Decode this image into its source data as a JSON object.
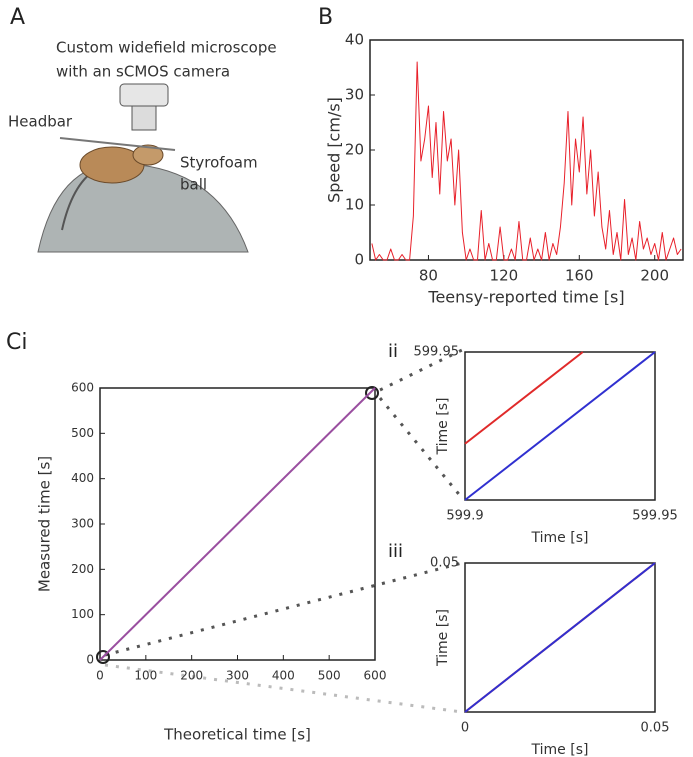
{
  "panel_labels": {
    "a": "A",
    "b": "B",
    "ci": "Ci",
    "ii": "ii",
    "iii": "iii"
  },
  "illustration": {
    "labels": [
      "Custom widefield microscope",
      "with an sCMOS camera",
      "Headbar",
      "Styrofoam",
      "ball"
    ]
  },
  "chart_data": [
    {
      "type": "line",
      "xlabel": "Teensy-reported time [s]",
      "ylabel": "Speed [cm/s]",
      "xlim": [
        49,
        215
      ],
      "ylim": [
        0,
        40
      ],
      "xticks": [
        80,
        120,
        160,
        200
      ],
      "yticks": [
        0,
        10,
        20,
        30,
        40
      ],
      "series": [
        {
          "color": "#e8202a",
          "x": [
            50,
            52,
            54,
            56,
            58,
            60,
            62,
            64,
            66,
            68,
            70,
            72,
            74,
            76,
            78,
            80,
            82,
            84,
            86,
            88,
            90,
            92,
            94,
            96,
            98,
            100,
            102,
            104,
            106,
            108,
            110,
            112,
            114,
            116,
            118,
            120,
            122,
            124,
            126,
            128,
            130,
            132,
            134,
            136,
            138,
            140,
            142,
            144,
            146,
            148,
            150,
            152,
            154,
            156,
            158,
            160,
            162,
            164,
            166,
            168,
            170,
            172,
            174,
            176,
            178,
            180,
            182,
            184,
            186,
            188,
            190,
            192,
            194,
            196,
            198,
            200,
            202,
            204,
            206,
            208,
            210,
            212,
            214
          ],
          "values": [
            3,
            0,
            1,
            0,
            0,
            2,
            0,
            0,
            1,
            0,
            0,
            8,
            36,
            18,
            22,
            28,
            15,
            25,
            12,
            27,
            18,
            22,
            10,
            20,
            5,
            0,
            2,
            0,
            0,
            9,
            0,
            3,
            0,
            0,
            6,
            0,
            0,
            2,
            0,
            7,
            0,
            0,
            4,
            0,
            2,
            0,
            5,
            0,
            3,
            1,
            6,
            14,
            27,
            10,
            22,
            16,
            26,
            12,
            20,
            8,
            16,
            6,
            2,
            9,
            1,
            5,
            0,
            11,
            1,
            4,
            0,
            7,
            2,
            4,
            1,
            3,
            0,
            5,
            0,
            2,
            4,
            1,
            2
          ]
        }
      ]
    },
    {
      "type": "line",
      "xlabel": "Theoretical time [s]",
      "ylabel": "Measured time [s]",
      "xlim": [
        0,
        600
      ],
      "ylim": [
        0,
        600
      ],
      "xticks": [
        0,
        100,
        200,
        300,
        400,
        500,
        600
      ],
      "yticks": [
        0,
        100,
        200,
        300,
        400,
        500,
        600
      ],
      "series": [
        {
          "color": "#9a4fa0",
          "x": [
            0,
            599.95
          ],
          "values": [
            0,
            599.95
          ]
        }
      ]
    },
    {
      "type": "line",
      "xlabel": "Time [s]",
      "ylabel": "Time [s]",
      "xlim": [
        599.9,
        599.95
      ],
      "ylim": [
        599.9,
        599.95
      ],
      "xticks": [
        599.9,
        599.95
      ],
      "yticks": [
        599.95
      ],
      "series": [
        {
          "color": "#e02a2a",
          "x": [
            599.9,
            599.931
          ],
          "values": [
            599.919,
            599.95
          ]
        },
        {
          "color": "#3030d0",
          "x": [
            599.9,
            599.95
          ],
          "values": [
            599.9,
            599.95
          ]
        }
      ]
    },
    {
      "type": "line",
      "xlabel": "Time [s]",
      "ylabel": "Time [s]",
      "xlim": [
        0,
        0.05
      ],
      "ylim": [
        0,
        0.05
      ],
      "xticks": [
        0,
        0.05
      ],
      "yticks": [
        0.05
      ],
      "series": [
        {
          "color": "#e02a2a",
          "x": [
            0,
            0.05
          ],
          "values": [
            0,
            0.05
          ]
        },
        {
          "color": "#3030d0",
          "x": [
            0,
            0.05
          ],
          "values": [
            0,
            0.05
          ]
        }
      ]
    }
  ]
}
